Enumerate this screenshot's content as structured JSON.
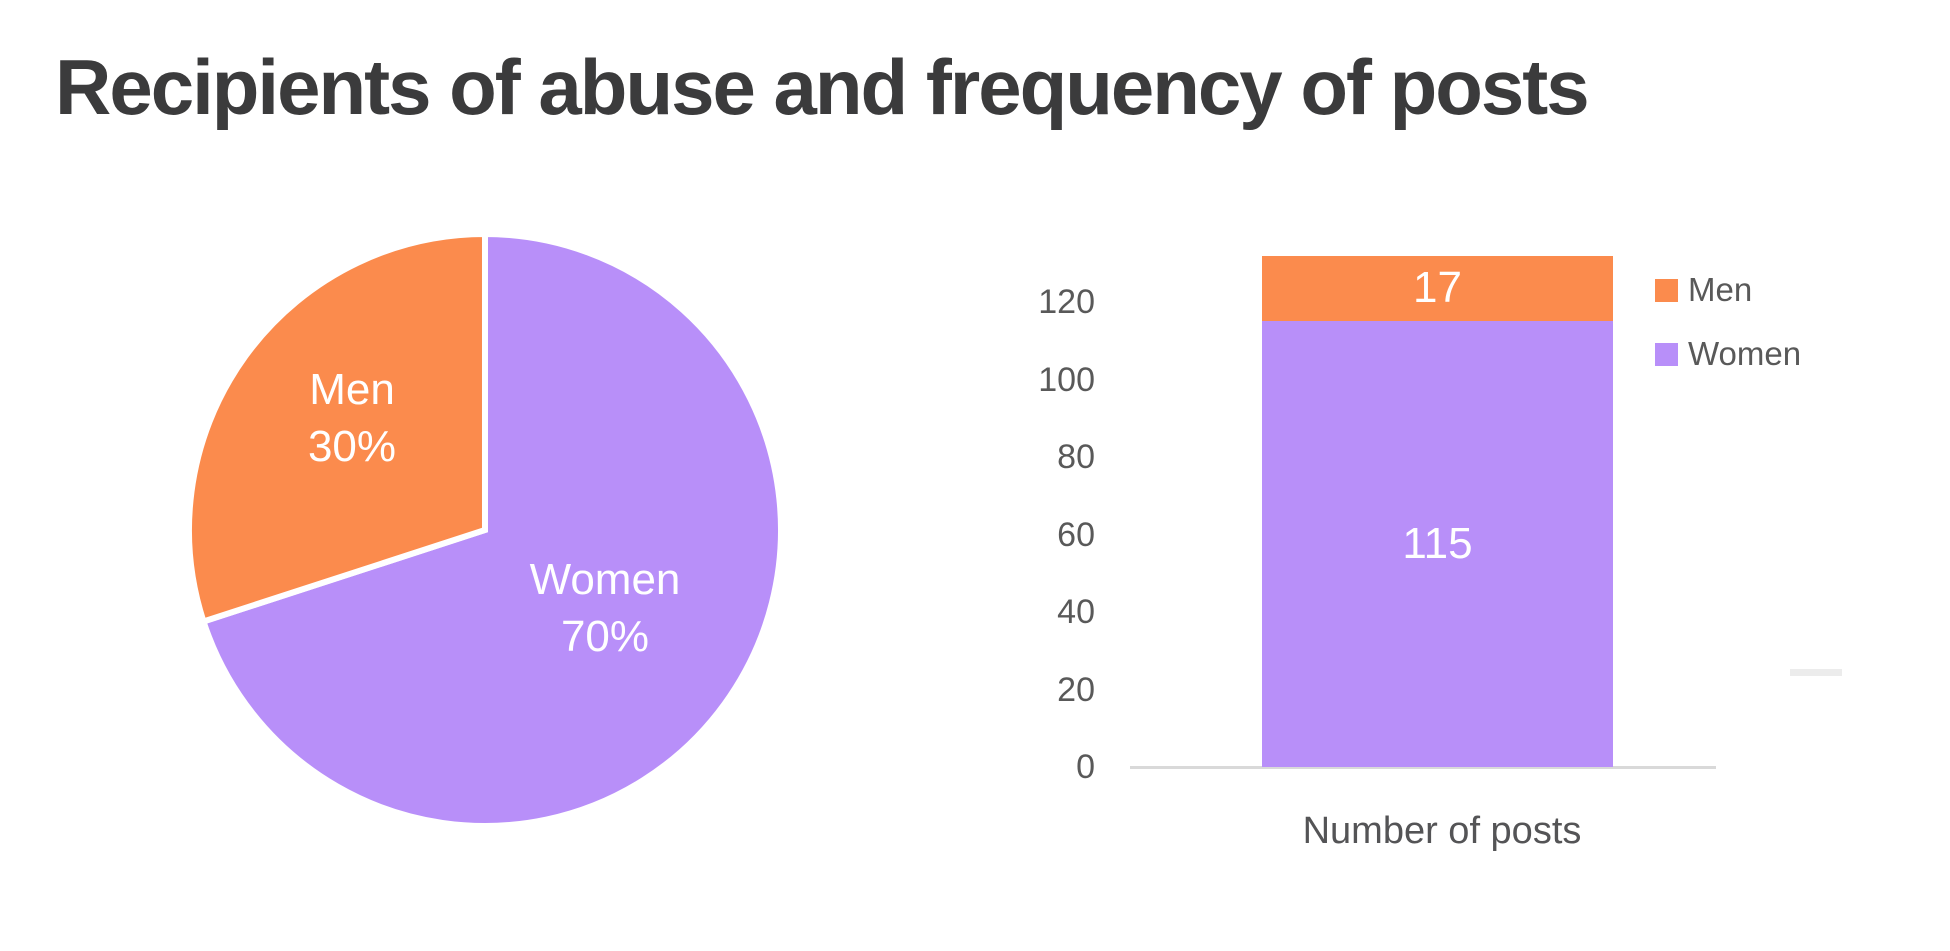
{
  "title": "Recipients of abuse and frequency of posts",
  "colors": {
    "background": "#FFFFFF",
    "title_text": "#3B3B3C",
    "axis_text": "#595959",
    "axis_line": "#D9D9D9",
    "value_label_text": "#FFFFFF",
    "men_orange": "#FB8B4D",
    "women_purple": "#B88FF9"
  },
  "chart_data": [
    {
      "type": "pie",
      "slices": [
        {
          "label": "Men",
          "value": 30,
          "value_label": "30%",
          "color": "#FB8B4D"
        },
        {
          "label": "Women",
          "value": 70,
          "value_label": "70%",
          "color": "#B88FF9"
        }
      ],
      "start_angle_deg": 0,
      "direction": "clockwise",
      "draw_order_from_top": [
        "Women",
        "Men"
      ],
      "label_position": "inside",
      "label_color": "#FFFFFF"
    },
    {
      "type": "bar",
      "subtype": "stacked-single-column",
      "categories": [
        "Number of posts"
      ],
      "series": [
        {
          "name": "Men",
          "values": [
            17
          ],
          "color": "#FB8B4D"
        },
        {
          "name": "Women",
          "values": [
            115
          ],
          "color": "#B88FF9"
        }
      ],
      "stack_bottom_to_top": [
        "Women",
        "Men"
      ],
      "xlabel": "Number of posts",
      "ylabel": "",
      "ylim": [
        0,
        120
      ],
      "yticks": [
        0,
        20,
        40,
        60,
        80,
        100,
        120
      ],
      "grid": false,
      "legend_position": "right",
      "value_labels_inside": true
    }
  ]
}
